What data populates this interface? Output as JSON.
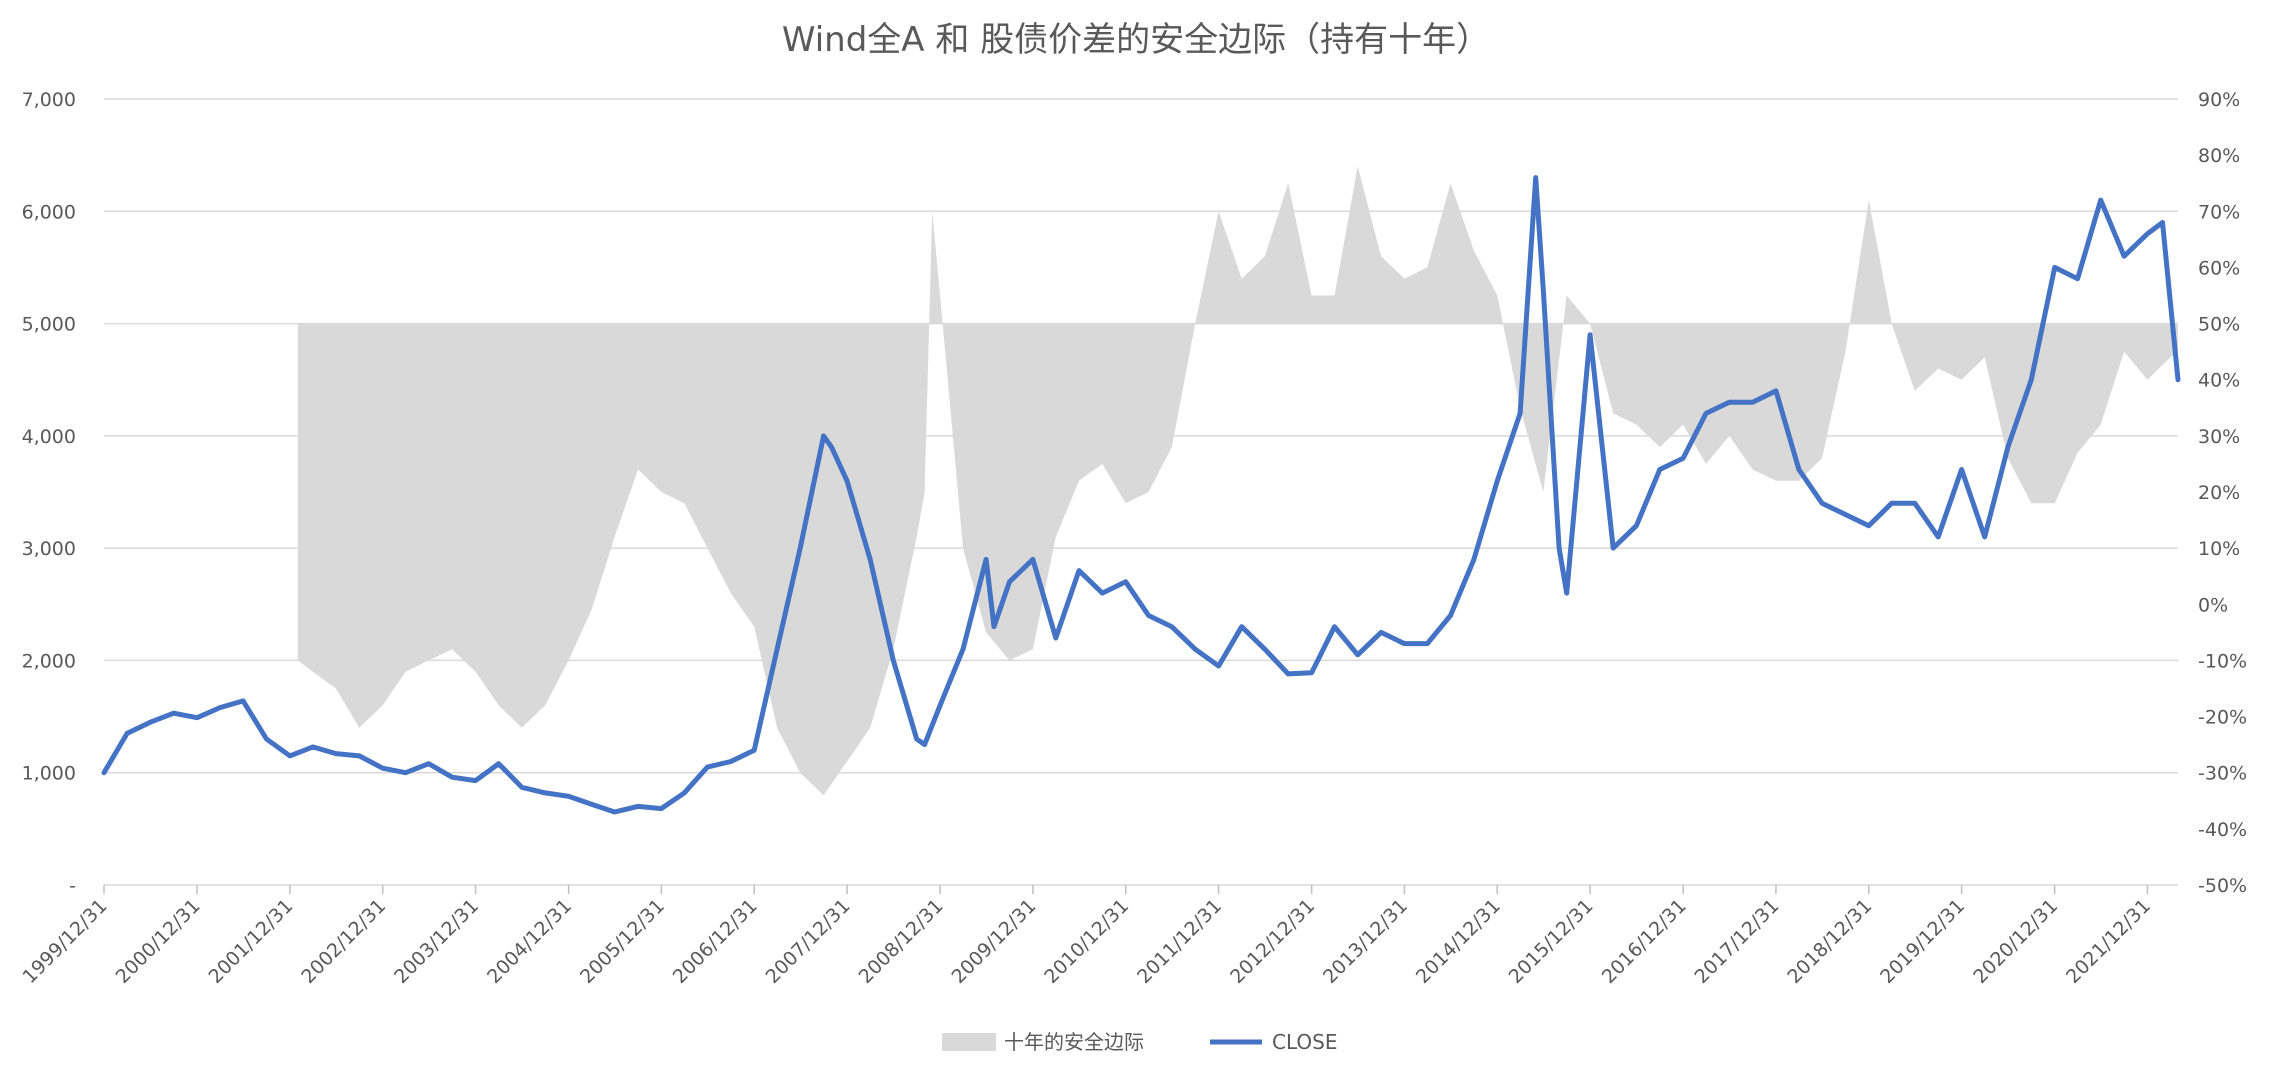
{
  "chart_data": {
    "type": "line",
    "title": "Wind全A 和 股债价差的安全边际（持有十年）",
    "y_left": {
      "min": 0,
      "max": 7000,
      "ticks": [
        0,
        1000,
        2000,
        3000,
        4000,
        5000,
        6000,
        7000
      ],
      "tick_labels": [
        "-",
        "1,000",
        "2,000",
        "3,000",
        "4,000",
        "5,000",
        "6,000",
        "7,000"
      ]
    },
    "y_right": {
      "min": -0.5,
      "max": 0.9,
      "ticks": [
        -0.5,
        -0.4,
        -0.3,
        -0.2,
        -0.1,
        0,
        0.1,
        0.2,
        0.3,
        0.4,
        0.5,
        0.6,
        0.7,
        0.8,
        0.9
      ],
      "tick_labels": [
        "-50%",
        "-40%",
        "-30%",
        "-20%",
        "-10%",
        "0%",
        "10%",
        "20%",
        "30%",
        "40%",
        "50%",
        "60%",
        "70%",
        "80%",
        "90%"
      ]
    },
    "x_range": [
      "1999-12-31",
      "2022-04-30"
    ],
    "x_ticks": [
      "1999/12/31",
      "2000/12/31",
      "2001/12/31",
      "2002/12/31",
      "2003/12/31",
      "2004/12/31",
      "2005/12/31",
      "2006/12/31",
      "2007/12/31",
      "2008/12/31",
      "2009/12/31",
      "2010/12/31",
      "2011/12/31",
      "2012/12/31",
      "2013/12/31",
      "2014/12/31",
      "2015/12/31",
      "2016/12/31",
      "2017/12/31",
      "2018/12/31",
      "2019/12/31",
      "2020/12/31",
      "2021/12/31"
    ],
    "baseline_right": 0.5,
    "legend": {
      "placement": "bottom"
    },
    "grid": true,
    "series": [
      {
        "name": "十年的安全边际",
        "kind": "area",
        "axis": "right",
        "color": "#d9d9d9",
        "x": [
          "2002-01-31",
          "2002-03-31",
          "2002-06-30",
          "2002-09-30",
          "2002-12-31",
          "2003-03-31",
          "2003-06-30",
          "2003-09-30",
          "2003-12-31",
          "2004-03-31",
          "2004-06-30",
          "2004-09-30",
          "2004-12-31",
          "2005-03-31",
          "2005-06-30",
          "2005-09-30",
          "2005-12-31",
          "2006-03-31",
          "2006-06-30",
          "2006-09-30",
          "2006-12-31",
          "2007-03-31",
          "2007-06-30",
          "2007-09-30",
          "2007-12-31",
          "2008-03-31",
          "2008-06-30",
          "2008-09-30",
          "2008-10-31",
          "2008-11-30",
          "2008-12-31",
          "2009-03-31",
          "2009-06-30",
          "2009-09-30",
          "2009-12-31",
          "2010-03-31",
          "2010-06-30",
          "2010-09-30",
          "2010-12-31",
          "2011-03-31",
          "2011-06-30",
          "2011-09-30",
          "2011-12-31",
          "2012-03-31",
          "2012-06-30",
          "2012-09-30",
          "2012-12-31",
          "2013-03-31",
          "2013-06-30",
          "2013-09-30",
          "2013-12-31",
          "2014-03-31",
          "2014-06-30",
          "2014-09-30",
          "2014-12-31",
          "2015-03-31",
          "2015-06-30",
          "2015-09-30",
          "2015-12-31",
          "2016-03-31",
          "2016-06-30",
          "2016-09-30",
          "2016-12-31",
          "2017-03-31",
          "2017-06-30",
          "2017-09-30",
          "2017-12-31",
          "2018-03-31",
          "2018-06-30",
          "2018-09-30",
          "2018-12-31",
          "2019-03-31",
          "2019-06-30",
          "2019-09-30",
          "2019-12-31",
          "2020-03-31",
          "2020-06-30",
          "2020-09-30",
          "2020-12-31",
          "2021-03-31",
          "2021-06-30",
          "2021-09-30",
          "2021-12-31",
          "2022-03-31",
          "2022-04-30"
        ],
        "values": [
          -0.1,
          -0.12,
          -0.15,
          -0.22,
          -0.18,
          -0.12,
          -0.1,
          -0.08,
          -0.12,
          -0.18,
          -0.22,
          -0.18,
          -0.1,
          -0.01,
          0.12,
          0.24,
          0.2,
          0.18,
          0.1,
          0.02,
          -0.04,
          -0.22,
          -0.3,
          -0.34,
          -0.28,
          -0.22,
          -0.08,
          0.12,
          0.2,
          0.7,
          0.55,
          0.1,
          -0.05,
          -0.1,
          -0.08,
          0.12,
          0.22,
          0.25,
          0.18,
          0.2,
          0.28,
          0.5,
          0.7,
          0.58,
          0.62,
          0.75,
          0.55,
          0.55,
          0.78,
          0.62,
          0.58,
          0.6,
          0.75,
          0.63,
          0.55,
          0.35,
          0.2,
          0.55,
          0.5,
          0.34,
          0.32,
          0.28,
          0.32,
          0.25,
          0.3,
          0.24,
          0.22,
          0.22,
          0.26,
          0.45,
          0.72,
          0.5,
          0.38,
          0.42,
          0.4,
          0.44,
          0.26,
          0.18,
          0.18,
          0.27,
          0.32,
          0.45,
          0.4,
          0.44,
          0.45
        ]
      },
      {
        "name": "CLOSE",
        "kind": "line",
        "axis": "left",
        "color": "#4472c4",
        "x": [
          "1999-12-31",
          "2000-03-31",
          "2000-06-30",
          "2000-09-30",
          "2000-12-31",
          "2001-03-31",
          "2001-06-30",
          "2001-09-30",
          "2001-12-31",
          "2002-03-31",
          "2002-06-30",
          "2002-09-30",
          "2002-12-31",
          "2003-03-31",
          "2003-06-30",
          "2003-09-30",
          "2003-12-31",
          "2004-03-31",
          "2004-06-30",
          "2004-09-30",
          "2004-12-31",
          "2005-03-31",
          "2005-06-30",
          "2005-09-30",
          "2005-12-31",
          "2006-03-31",
          "2006-06-30",
          "2006-09-30",
          "2006-12-31",
          "2007-03-31",
          "2007-06-30",
          "2007-09-30",
          "2007-10-31",
          "2007-12-31",
          "2008-03-31",
          "2008-06-30",
          "2008-09-30",
          "2008-10-31",
          "2008-12-31",
          "2009-03-31",
          "2009-06-30",
          "2009-07-31",
          "2009-09-30",
          "2009-12-31",
          "2010-03-31",
          "2010-06-30",
          "2010-09-30",
          "2010-12-31",
          "2011-03-31",
          "2011-06-30",
          "2011-09-30",
          "2011-12-31",
          "2012-03-31",
          "2012-06-30",
          "2012-09-30",
          "2012-12-31",
          "2013-03-31",
          "2013-06-30",
          "2013-09-30",
          "2013-12-31",
          "2014-03-31",
          "2014-06-30",
          "2014-09-30",
          "2014-12-31",
          "2015-03-31",
          "2015-05-31",
          "2015-06-30",
          "2015-08-31",
          "2015-09-30",
          "2015-12-31",
          "2016-03-31",
          "2016-06-30",
          "2016-09-30",
          "2016-12-31",
          "2017-03-31",
          "2017-06-30",
          "2017-09-30",
          "2017-12-31",
          "2018-03-31",
          "2018-06-30",
          "2018-09-30",
          "2018-12-31",
          "2019-03-31",
          "2019-06-30",
          "2019-09-30",
          "2019-12-31",
          "2020-03-31",
          "2020-06-30",
          "2020-09-30",
          "2020-12-31",
          "2021-03-31",
          "2021-06-30",
          "2021-09-30",
          "2021-12-31",
          "2022-02-28",
          "2022-04-30"
        ],
        "values": [
          1000,
          1350,
          1450,
          1530,
          1490,
          1580,
          1640,
          1300,
          1150,
          1230,
          1170,
          1150,
          1040,
          1000,
          1080,
          960,
          930,
          1080,
          870,
          820,
          790,
          720,
          650,
          700,
          680,
          820,
          1050,
          1100,
          1200,
          2100,
          3000,
          4000,
          3900,
          3600,
          2900,
          2000,
          1300,
          1250,
          1600,
          2100,
          2900,
          2300,
          2700,
          2900,
          2200,
          2800,
          2600,
          2700,
          2400,
          2300,
          2100,
          1950,
          2300,
          2100,
          1880,
          1890,
          2300,
          2050,
          2250,
          2150,
          2150,
          2400,
          2900,
          3600,
          4200,
          6300,
          5300,
          3000,
          2600,
          4900,
          3000,
          3200,
          3700,
          3800,
          4200,
          4300,
          4300,
          4400,
          3700,
          3400,
          3300,
          3200,
          3400,
          3400,
          3100,
          3700,
          3100,
          3900,
          4500,
          5500,
          5400,
          6100,
          5600,
          5800,
          5900,
          4500
        ]
      }
    ]
  },
  "legend": {
    "area_label": "十年的安全边际",
    "line_label": "CLOSE"
  }
}
